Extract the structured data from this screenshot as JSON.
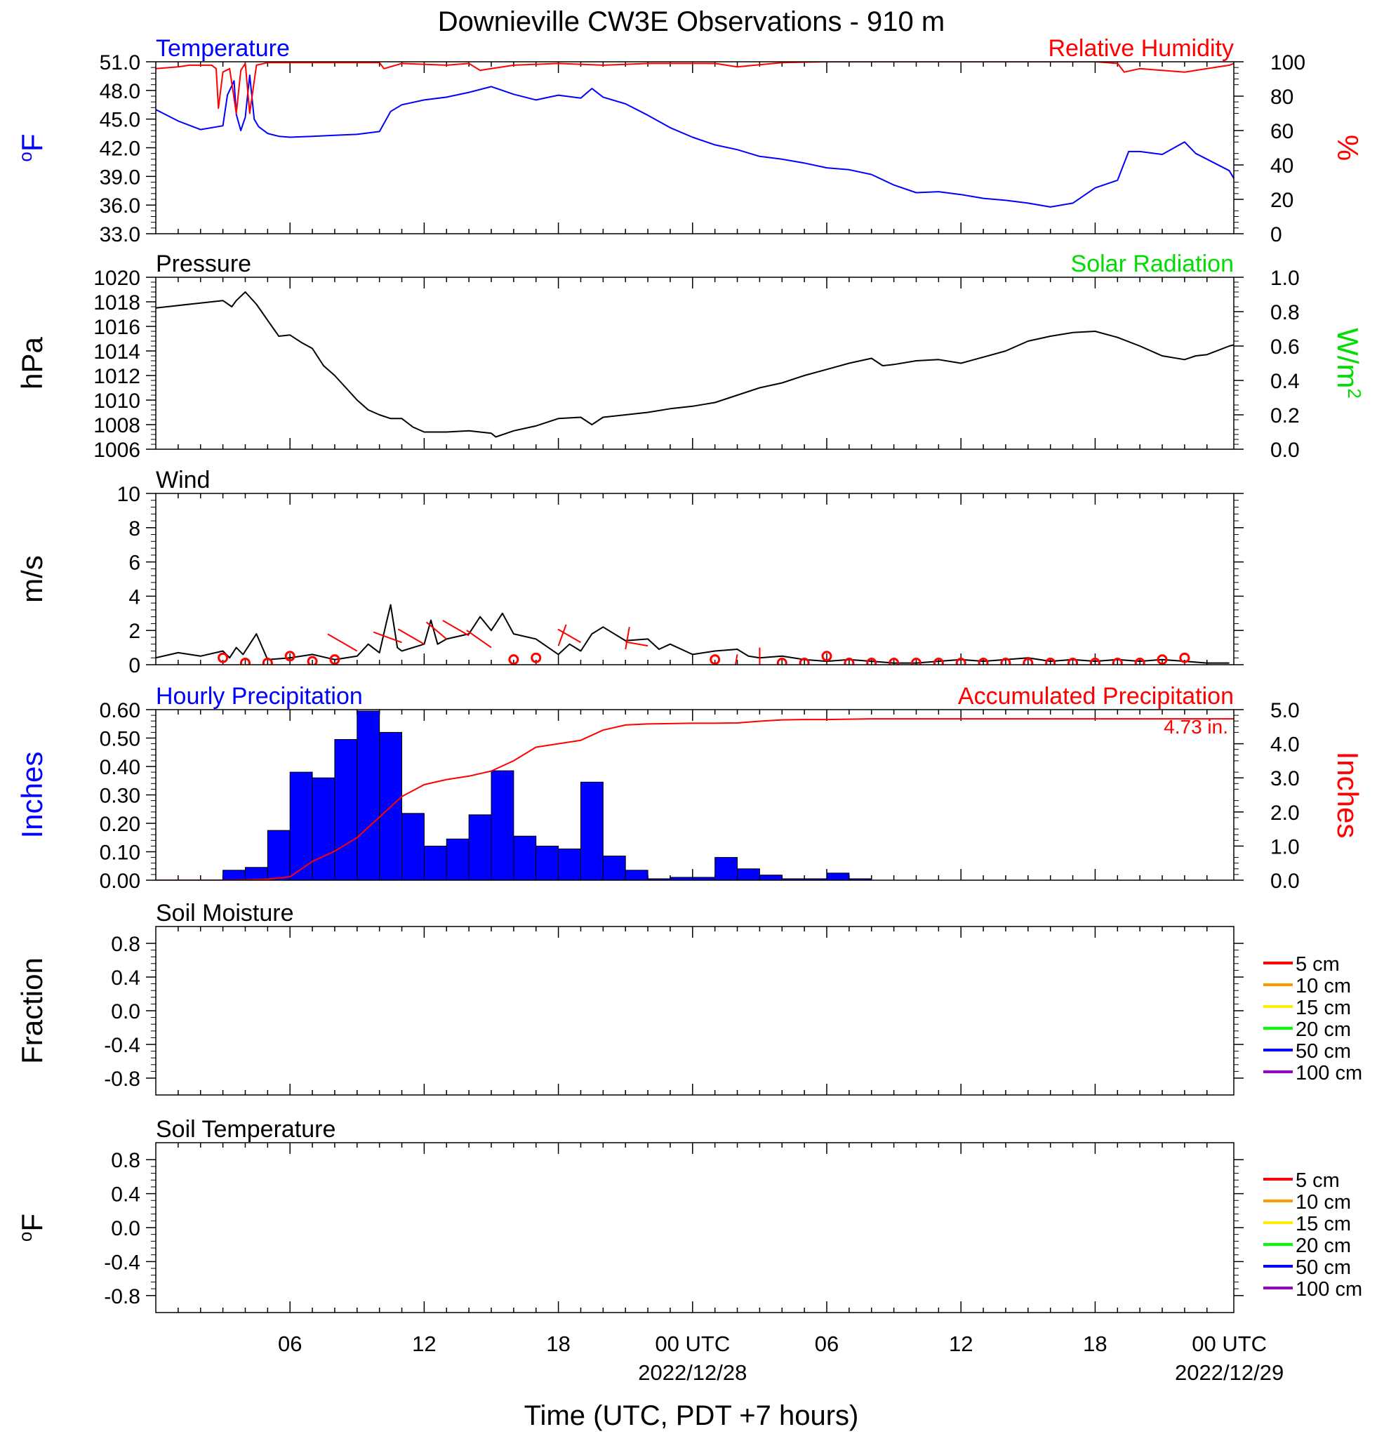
{
  "title": "Downieville CW3E Observations - 910 m",
  "xlabel": "Time (UTC, PDT +7 hours)",
  "x_ticks": [
    {
      "hour": 6,
      "label": "06",
      "date": ""
    },
    {
      "hour": 12,
      "label": "12",
      "date": ""
    },
    {
      "hour": 18,
      "label": "18",
      "date": ""
    },
    {
      "hour": 24,
      "label": "00 UTC",
      "date": "2022/12/28"
    },
    {
      "hour": 30,
      "label": "06",
      "date": ""
    },
    {
      "hour": 36,
      "label": "12",
      "date": ""
    },
    {
      "hour": 42,
      "label": "18",
      "date": ""
    },
    {
      "hour": 48,
      "label": "00 UTC",
      "date": "2022/12/29"
    }
  ],
  "colors": {
    "blue": "#0000ff",
    "red": "#ff0000",
    "green": "#00dd00",
    "black": "#000000"
  },
  "legend": {
    "items": [
      {
        "label": "5 cm",
        "color": "#ff0000"
      },
      {
        "label": "10 cm",
        "color": "#ff9900"
      },
      {
        "label": "15 cm",
        "color": "#ffee00"
      },
      {
        "label": "20 cm",
        "color": "#00ff00"
      },
      {
        "label": "50 cm",
        "color": "#0000ff"
      },
      {
        "label": "100 cm",
        "color": "#9900cc"
      }
    ]
  },
  "chart_data": [
    {
      "id": "temp",
      "type": "line",
      "title_left": "Temperature",
      "title_right": "Relative Humidity",
      "ylabel_left": "oF",
      "ylabel_right": "%",
      "x_range_hours": [
        0,
        48.2
      ],
      "ylim_left": [
        33,
        51
      ],
      "yticks_left": [
        "33.0",
        "36.0",
        "39.0",
        "42.0",
        "45.0",
        "48.0",
        "51.0"
      ],
      "ylim_right": [
        0,
        100
      ],
      "yticks_right": [
        "0",
        "20",
        "40",
        "60",
        "80",
        "100"
      ],
      "series": [
        {
          "name": "Temperature",
          "axis": "left",
          "color": "#0000ff",
          "x": [
            0,
            1,
            2,
            3,
            3.2,
            3.5,
            3.6,
            3.8,
            4.0,
            4.2,
            4.4,
            4.6,
            5,
            5.5,
            6,
            7,
            8,
            9,
            10,
            10.5,
            11,
            12,
            13,
            14,
            15,
            16,
            17,
            18,
            19,
            19.5,
            20,
            21,
            22,
            23,
            24,
            25,
            26,
            27,
            28,
            29,
            30,
            31,
            32,
            33,
            34,
            35,
            36,
            37,
            38,
            39,
            40,
            41,
            42,
            43,
            43.5,
            44,
            45,
            46,
            46.5,
            47,
            48,
            48.2
          ],
          "y": [
            46,
            44.8,
            43.9,
            44.3,
            47.5,
            49,
            45.5,
            43.8,
            45.2,
            49.6,
            45,
            44.2,
            43.5,
            43.2,
            43.1,
            43.2,
            43.3,
            43.4,
            43.7,
            45.8,
            46.5,
            47,
            47.3,
            47.8,
            48.4,
            47.6,
            47,
            47.5,
            47.2,
            48.2,
            47.3,
            46.6,
            45.4,
            44.1,
            43.1,
            42.3,
            41.8,
            41.1,
            40.8,
            40.4,
            39.9,
            39.7,
            39.2,
            38.1,
            37.3,
            37.4,
            37.1,
            36.7,
            36.5,
            36.2,
            35.8,
            36.2,
            37.8,
            38.6,
            41.6,
            41.6,
            41.3,
            42.6,
            41.4,
            40.8,
            39.6,
            38.8
          ]
        },
        {
          "name": "Relative Humidity",
          "axis": "right",
          "color": "#ff0000",
          "x": [
            0,
            1,
            1.5,
            2,
            2.5,
            2.7,
            2.8,
            3.0,
            3.3,
            3.6,
            3.8,
            4.0,
            4.2,
            4.5,
            5,
            6,
            8,
            10,
            10.2,
            11,
            13,
            14,
            14.5,
            15,
            16,
            18,
            20,
            22,
            24,
            25,
            26,
            28,
            30,
            35,
            40,
            42,
            43,
            43.3,
            44,
            45,
            46,
            47,
            48,
            48.2
          ],
          "y": [
            96,
            97,
            98,
            98,
            98,
            96,
            73,
            94,
            96,
            70,
            95,
            99,
            70,
            98,
            99.5,
            99.5,
            99.5,
            99.5,
            96,
            99,
            98,
            99,
            95,
            96,
            98,
            99,
            98,
            99,
            99,
            99,
            97,
            99.5,
            100,
            100,
            100,
            100,
            99,
            94,
            96,
            95,
            94,
            96,
            98,
            99
          ]
        }
      ]
    },
    {
      "id": "pres",
      "type": "line",
      "title_left": "Pressure",
      "title_right": "Solar Radiation",
      "ylabel_left": "hPa",
      "ylabel_right": "W/m2",
      "x_range_hours": [
        0,
        48.2
      ],
      "ylim_left": [
        1006,
        1020
      ],
      "yticks_left": [
        "1006",
        "1008",
        "1010",
        "1012",
        "1014",
        "1016",
        "1018",
        "1020"
      ],
      "ylim_right": [
        0,
        1
      ],
      "yticks_right": [
        "0.0",
        "0.2",
        "0.4",
        "0.6",
        "0.8",
        "1.0"
      ],
      "series": [
        {
          "name": "Pressure",
          "axis": "left",
          "color": "#000000",
          "x": [
            0,
            1,
            2,
            3,
            3.4,
            3.6,
            4,
            4.5,
            5,
            5.5,
            6,
            6.5,
            7,
            7.5,
            8,
            8.5,
            9,
            9.5,
            10,
            10.5,
            11,
            11.5,
            12,
            13,
            14,
            15,
            15.2,
            16,
            17,
            18,
            19,
            19.5,
            20,
            21,
            22,
            23,
            24,
            25,
            26,
            27,
            28,
            29,
            30,
            31,
            32,
            32.5,
            33,
            34,
            35,
            36,
            37,
            38,
            39,
            40,
            41,
            42,
            43,
            44,
            45,
            46,
            46.5,
            47,
            48,
            48.2
          ],
          "y": [
            1017.5,
            1017.7,
            1017.9,
            1018.1,
            1017.6,
            1018.1,
            1018.8,
            1017.8,
            1016.5,
            1015.2,
            1015.3,
            1014.7,
            1014.2,
            1012.8,
            1012.0,
            1011.0,
            1010.0,
            1009.2,
            1008.8,
            1008.5,
            1008.5,
            1007.8,
            1007.4,
            1007.4,
            1007.5,
            1007.3,
            1007.0,
            1007.5,
            1007.9,
            1008.5,
            1008.6,
            1008.0,
            1008.6,
            1008.8,
            1009.0,
            1009.3,
            1009.5,
            1009.8,
            1010.4,
            1011.0,
            1011.4,
            1012.0,
            1012.5,
            1013.0,
            1013.4,
            1012.8,
            1012.9,
            1013.2,
            1013.3,
            1013.0,
            1013.5,
            1014.0,
            1014.8,
            1015.2,
            1015.5,
            1015.6,
            1015.1,
            1014.4,
            1013.6,
            1013.3,
            1013.6,
            1013.7,
            1014.4,
            1014.5
          ]
        }
      ]
    },
    {
      "id": "wind",
      "type": "line",
      "title_left": "Wind",
      "title_right": "",
      "ylabel_left": "m/s",
      "ylabel_right": "",
      "x_range_hours": [
        0,
        48.2
      ],
      "ylim_left": [
        0,
        10
      ],
      "yticks_left": [
        "0",
        "2",
        "4",
        "6",
        "8",
        "10"
      ],
      "ylim_right": null,
      "yticks_right": [],
      "series": [
        {
          "name": "Wind speed",
          "axis": "left",
          "color": "#000000",
          "x": [
            0,
            1,
            2,
            3,
            3.3,
            3.6,
            3.9,
            4.5,
            5,
            6,
            7,
            8,
            9,
            9.5,
            10,
            10.3,
            10.5,
            10.8,
            11,
            12,
            12.3,
            12.6,
            13,
            14,
            14.5,
            15,
            15.5,
            16,
            17,
            18,
            18.5,
            19,
            19.5,
            20,
            21,
            22,
            22.5,
            23,
            24,
            25,
            26,
            26.5,
            27,
            28,
            29,
            30,
            31,
            32,
            33,
            34,
            35,
            36,
            37,
            38,
            39,
            40,
            41,
            42,
            43,
            44,
            45,
            46,
            47,
            48
          ],
          "y": [
            0.4,
            0.7,
            0.5,
            0.8,
            0.4,
            1.0,
            0.6,
            1.8,
            0.3,
            0.4,
            0.6,
            0.3,
            0.5,
            1.2,
            0.7,
            2.4,
            3.5,
            1.0,
            0.8,
            1.2,
            2.6,
            1.2,
            1.5,
            1.8,
            2.8,
            2.0,
            3.0,
            1.8,
            1.5,
            0.6,
            1.2,
            0.8,
            1.8,
            2.2,
            1.4,
            1.5,
            0.9,
            1.2,
            0.6,
            0.8,
            0.9,
            0.5,
            0.4,
            0.5,
            0.3,
            0.2,
            0.3,
            0.2,
            0.1,
            0.1,
            0.2,
            0.3,
            0.2,
            0.3,
            0.4,
            0.2,
            0.3,
            0.2,
            0.3,
            0.2,
            0.3,
            0.2,
            0.1,
            0.1
          ]
        }
      ],
      "wind_markers": [
        {
          "hour": 3,
          "speed": 0.4,
          "dir_deg": 0
        },
        {
          "hour": 4,
          "speed": 0.1,
          "dir_deg": 0
        },
        {
          "hour": 5,
          "speed": 0.1,
          "dir_deg": 0
        },
        {
          "hour": 6,
          "speed": 0.5,
          "dir_deg": 0
        },
        {
          "hour": 7,
          "speed": 0.2,
          "dir_deg": 0
        },
        {
          "hour": 8,
          "speed": 0.3,
          "dir_deg": 0
        },
        {
          "hour": 9,
          "speed": 0.8,
          "dir_deg": 300,
          "barb_len": 0.9
        },
        {
          "hour": 11,
          "speed": 1.3,
          "dir_deg": 290,
          "barb_len": 0.8
        },
        {
          "hour": 12,
          "speed": 1.2,
          "dir_deg": 300,
          "barb_len": 0.8
        },
        {
          "hour": 13,
          "speed": 1.5,
          "dir_deg": 310,
          "barb_len": 0.7
        },
        {
          "hour": 14,
          "speed": 1.7,
          "dir_deg": 300,
          "barb_len": 0.8
        },
        {
          "hour": 15,
          "speed": 1.0,
          "dir_deg": 305,
          "barb_len": 0.8
        },
        {
          "hour": 16,
          "speed": 0.3,
          "dir_deg": 0
        },
        {
          "hour": 17,
          "speed": 0.4,
          "dir_deg": 0
        },
        {
          "hour": 18,
          "speed": 1.1,
          "dir_deg": 20,
          "barb_len": 0.6
        },
        {
          "hour": 19,
          "speed": 1.3,
          "dir_deg": 300,
          "barb_len": 0.7
        },
        {
          "hour": 21,
          "speed": 0.9,
          "dir_deg": 10,
          "barb_len": 0.6
        },
        {
          "hour": 22,
          "speed": 1.1,
          "dir_deg": 280,
          "barb_len": 0.6
        },
        {
          "hour": 25,
          "speed": 0.3,
          "dir_deg": 0
        },
        {
          "hour": 26,
          "speed": 0.6,
          "dir_deg": 190,
          "barb_len": 0.6
        },
        {
          "hour": 27,
          "speed": 1.0,
          "dir_deg": 180,
          "barb_len": 0.7
        },
        {
          "hour": 28,
          "speed": 0.1,
          "dir_deg": 0
        },
        {
          "hour": 29,
          "speed": 0.1,
          "dir_deg": 0
        },
        {
          "hour": 30,
          "speed": 0.5,
          "dir_deg": 0
        },
        {
          "hour": 31,
          "speed": 0.1,
          "dir_deg": 0
        },
        {
          "hour": 32,
          "speed": 0.1,
          "dir_deg": 0
        },
        {
          "hour": 33,
          "speed": 0.1,
          "dir_deg": 0
        },
        {
          "hour": 34,
          "speed": 0.1,
          "dir_deg": 0
        },
        {
          "hour": 35,
          "speed": 0.1,
          "dir_deg": 0
        },
        {
          "hour": 36,
          "speed": 0.1,
          "dir_deg": 0
        },
        {
          "hour": 37,
          "speed": 0.1,
          "dir_deg": 0
        },
        {
          "hour": 38,
          "speed": 0.1,
          "dir_deg": 0
        },
        {
          "hour": 39,
          "speed": 0.1,
          "dir_deg": 0
        },
        {
          "hour": 40,
          "speed": 0.1,
          "dir_deg": 0
        },
        {
          "hour": 41,
          "speed": 0.1,
          "dir_deg": 0
        },
        {
          "hour": 42,
          "speed": 0.1,
          "dir_deg": 0
        },
        {
          "hour": 43,
          "speed": 0.1,
          "dir_deg": 0
        },
        {
          "hour": 44,
          "speed": 0.1,
          "dir_deg": 0
        },
        {
          "hour": 45,
          "speed": 0.3,
          "dir_deg": 0
        },
        {
          "hour": 46,
          "speed": 0.4,
          "dir_deg": 0
        }
      ]
    },
    {
      "id": "precip",
      "type": "bar",
      "title_left": "Hourly Precipitation",
      "title_right": "Accumulated Precipitation",
      "ylabel_left": "Inches",
      "ylabel_right": "Inches",
      "x_range_hours": [
        0,
        48.2
      ],
      "ylim_left": [
        0,
        0.6
      ],
      "yticks_left": [
        "0.00",
        "0.10",
        "0.20",
        "0.30",
        "0.40",
        "0.50",
        "0.60"
      ],
      "ylim_right": [
        0,
        5
      ],
      "yticks_right": [
        "0.0",
        "1.0",
        "2.0",
        "3.0",
        "4.0",
        "5.0"
      ],
      "annotation": "4.73 in.",
      "bars": {
        "name": "Hourly Precipitation",
        "start_hours": [
          3,
          4,
          5,
          6,
          7,
          8,
          9,
          10,
          11,
          12,
          13,
          14,
          15,
          16,
          17,
          18,
          19,
          20,
          21,
          22,
          23,
          24,
          25,
          26,
          27,
          28,
          29,
          30,
          31,
          32
        ],
        "values": [
          0.035,
          0.045,
          0.175,
          0.38,
          0.36,
          0.495,
          0.595,
          0.52,
          0.235,
          0.12,
          0.145,
          0.23,
          0.385,
          0.155,
          0.12,
          0.11,
          0.345,
          0.085,
          0.035,
          0.005,
          0.01,
          0.01,
          0.08,
          0.04,
          0.018,
          0.005,
          0.005,
          0.025,
          0.005,
          0
        ]
      },
      "series": [
        {
          "name": "Accumulated Precipitation",
          "axis": "right",
          "color": "#ff0000",
          "x": [
            0,
            3,
            4,
            5,
            6,
            7,
            8,
            9,
            10,
            11,
            12,
            13,
            14,
            15,
            16,
            17,
            18,
            19,
            20,
            21,
            22,
            23,
            24,
            25,
            26,
            27,
            28,
            29,
            30,
            31,
            32,
            48.2
          ],
          "y": [
            0,
            0,
            0.01,
            0.03,
            0.1,
            0.55,
            0.85,
            1.25,
            1.85,
            2.45,
            2.8,
            2.95,
            3.05,
            3.2,
            3.5,
            3.9,
            4.0,
            4.1,
            4.4,
            4.55,
            4.58,
            4.59,
            4.6,
            4.6,
            4.61,
            4.66,
            4.7,
            4.71,
            4.71,
            4.72,
            4.73,
            4.73
          ]
        }
      ]
    },
    {
      "id": "soilm",
      "type": "line",
      "title_left": "Soil Moisture",
      "title_right": "",
      "ylabel_left": "Fraction",
      "ylabel_right": "",
      "x_range_hours": [
        0,
        48.2
      ],
      "ylim_left": [
        -1,
        1
      ],
      "yticks_left": [
        "-0.8",
        "-0.4",
        "0.0",
        "0.4",
        "0.8"
      ],
      "ytick_values": [
        -0.8,
        -0.4,
        0,
        0.4,
        0.8
      ],
      "ylim_right": null,
      "yticks_right": [],
      "series": []
    },
    {
      "id": "soilt",
      "type": "line",
      "title_left": "Soil Temperature",
      "title_right": "",
      "ylabel_left": "oF",
      "ylabel_right": "",
      "x_range_hours": [
        0,
        48.2
      ],
      "ylim_left": [
        -1,
        1
      ],
      "yticks_left": [
        "-0.8",
        "-0.4",
        "0.0",
        "0.4",
        "0.8"
      ],
      "ytick_values": [
        -0.8,
        -0.4,
        0,
        0.4,
        0.8
      ],
      "ylim_right": null,
      "yticks_right": [],
      "series": []
    }
  ]
}
